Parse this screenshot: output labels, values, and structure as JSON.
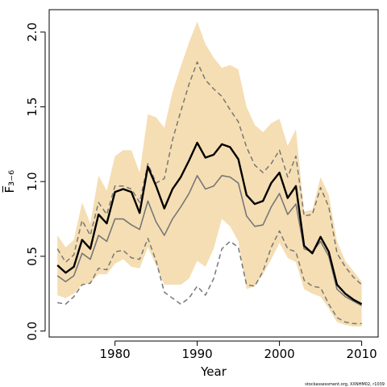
{
  "chart_data": {
    "type": "line",
    "xlabel": "Year",
    "ylabel": "F̅₃₋₆",
    "footnote": "stockassessment.org, XXNHM02, r1039",
    "xlim": [
      1972,
      2012
    ],
    "ylim": [
      -0.04,
      2.15
    ],
    "xticks": [
      1980,
      1990,
      2000,
      2010
    ],
    "yticks": [
      0.0,
      0.5,
      1.0,
      1.5,
      2.0
    ],
    "ytick_labels": [
      "0.0",
      "0.5",
      "1.0",
      "1.5",
      "2.0"
    ],
    "colors": {
      "band": "#f5deb3",
      "estimate": "#000000",
      "alt_estimate": "#777777",
      "dashed": "#777777"
    },
    "x": [
      1973,
      1974,
      1975,
      1976,
      1977,
      1978,
      1979,
      1980,
      1981,
      1982,
      1983,
      1984,
      1985,
      1986,
      1987,
      1988,
      1989,
      1990,
      1991,
      1992,
      1993,
      1994,
      1995,
      1996,
      1997,
      1998,
      1999,
      2000,
      2001,
      2002,
      2003,
      2004,
      2005,
      2006,
      2007,
      2008,
      2009,
      2010
    ],
    "series": [
      {
        "role": "band_upper",
        "values": [
          0.64,
          0.56,
          0.61,
          0.86,
          0.72,
          1.04,
          0.94,
          1.17,
          1.21,
          1.21,
          1.06,
          1.45,
          1.43,
          1.36,
          1.6,
          1.77,
          1.93,
          2.07,
          1.92,
          1.83,
          1.76,
          1.78,
          1.75,
          1.5,
          1.38,
          1.33,
          1.39,
          1.42,
          1.24,
          1.35,
          0.8,
          0.81,
          1.03,
          0.91,
          0.6,
          0.47,
          0.4,
          0.33
        ]
      },
      {
        "role": "band_lower",
        "values": [
          0.24,
          0.22,
          0.25,
          0.31,
          0.32,
          0.38,
          0.38,
          0.45,
          0.48,
          0.43,
          0.42,
          0.56,
          0.44,
          0.31,
          0.31,
          0.31,
          0.35,
          0.47,
          0.43,
          0.55,
          0.75,
          0.7,
          0.6,
          0.28,
          0.3,
          0.38,
          0.48,
          0.59,
          0.49,
          0.46,
          0.28,
          0.25,
          0.23,
          0.15,
          0.06,
          0.04,
          0.03,
          0.03
        ]
      },
      {
        "role": "upper_dashed",
        "values": [
          0.55,
          0.46,
          0.51,
          0.74,
          0.64,
          0.86,
          0.78,
          0.97,
          0.97,
          0.95,
          0.86,
          1.12,
          0.99,
          1.02,
          1.28,
          1.47,
          1.65,
          1.8,
          1.68,
          1.62,
          1.57,
          1.48,
          1.4,
          1.23,
          1.11,
          1.06,
          1.12,
          1.21,
          1.03,
          1.17,
          0.77,
          0.78,
          0.96,
          0.83,
          0.52,
          0.43,
          0.36,
          0.31
        ]
      },
      {
        "role": "estimate",
        "values": [
          0.44,
          0.39,
          0.43,
          0.61,
          0.55,
          0.78,
          0.72,
          0.93,
          0.95,
          0.93,
          0.79,
          1.1,
          0.97,
          0.82,
          0.95,
          1.03,
          1.14,
          1.26,
          1.16,
          1.18,
          1.25,
          1.23,
          1.15,
          0.91,
          0.85,
          0.87,
          0.99,
          1.06,
          0.89,
          0.97,
          0.57,
          0.52,
          0.63,
          0.53,
          0.31,
          0.25,
          0.21,
          0.18
        ]
      },
      {
        "role": "alt_estimate",
        "values": [
          0.37,
          0.33,
          0.37,
          0.52,
          0.48,
          0.64,
          0.6,
          0.75,
          0.75,
          0.71,
          0.68,
          0.87,
          0.73,
          0.64,
          0.75,
          0.83,
          0.92,
          1.04,
          0.95,
          0.97,
          1.04,
          1.03,
          0.99,
          0.77,
          0.7,
          0.71,
          0.83,
          0.92,
          0.78,
          0.85,
          0.55,
          0.53,
          0.6,
          0.5,
          0.28,
          0.23,
          0.2,
          0.17
        ]
      },
      {
        "role": "lower_dashed",
        "values": [
          0.19,
          0.18,
          0.23,
          0.31,
          0.32,
          0.42,
          0.41,
          0.53,
          0.54,
          0.49,
          0.48,
          0.62,
          0.47,
          0.26,
          0.22,
          0.18,
          0.22,
          0.3,
          0.24,
          0.35,
          0.55,
          0.6,
          0.56,
          0.31,
          0.3,
          0.4,
          0.56,
          0.67,
          0.55,
          0.53,
          0.34,
          0.3,
          0.29,
          0.18,
          0.09,
          0.06,
          0.05,
          0.05
        ]
      }
    ]
  }
}
